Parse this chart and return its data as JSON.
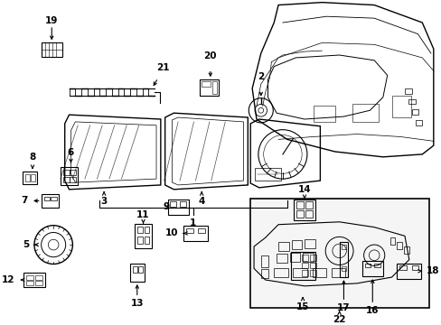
{
  "bg_color": "#ffffff",
  "line_color": "#000000",
  "text_color": "#000000",
  "fig_width": 4.89,
  "fig_height": 3.6,
  "dpi": 100,
  "font_size": 7.5
}
